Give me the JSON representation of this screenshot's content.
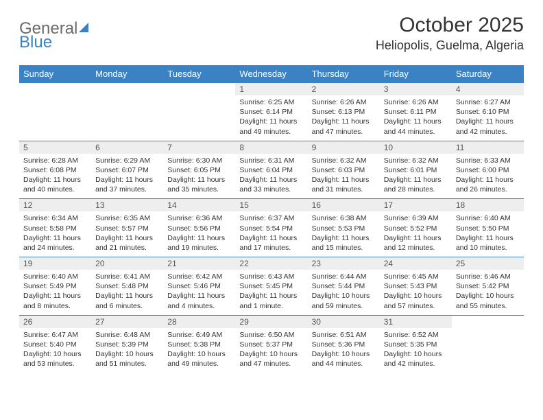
{
  "logo": {
    "text1": "General",
    "text2": "Blue"
  },
  "title": "October 2025",
  "location": "Heliopolis, Guelma, Algeria",
  "colors": {
    "header_bg": "#3b82c4",
    "header_text": "#ffffff",
    "daynum_bg": "#eeeeee",
    "border": "#3b82c4",
    "logo_gray": "#6b6b6b",
    "logo_blue": "#3b82c4"
  },
  "weekdays": [
    "Sunday",
    "Monday",
    "Tuesday",
    "Wednesday",
    "Thursday",
    "Friday",
    "Saturday"
  ],
  "weeks": [
    {
      "nums": [
        "",
        "",
        "",
        "1",
        "2",
        "3",
        "4"
      ],
      "info": [
        null,
        null,
        null,
        {
          "sunrise": "6:25 AM",
          "sunset": "6:14 PM",
          "daylight": "11 hours and 49 minutes."
        },
        {
          "sunrise": "6:26 AM",
          "sunset": "6:13 PM",
          "daylight": "11 hours and 47 minutes."
        },
        {
          "sunrise": "6:26 AM",
          "sunset": "6:11 PM",
          "daylight": "11 hours and 44 minutes."
        },
        {
          "sunrise": "6:27 AM",
          "sunset": "6:10 PM",
          "daylight": "11 hours and 42 minutes."
        }
      ]
    },
    {
      "nums": [
        "5",
        "6",
        "7",
        "8",
        "9",
        "10",
        "11"
      ],
      "info": [
        {
          "sunrise": "6:28 AM",
          "sunset": "6:08 PM",
          "daylight": "11 hours and 40 minutes."
        },
        {
          "sunrise": "6:29 AM",
          "sunset": "6:07 PM",
          "daylight": "11 hours and 37 minutes."
        },
        {
          "sunrise": "6:30 AM",
          "sunset": "6:05 PM",
          "daylight": "11 hours and 35 minutes."
        },
        {
          "sunrise": "6:31 AM",
          "sunset": "6:04 PM",
          "daylight": "11 hours and 33 minutes."
        },
        {
          "sunrise": "6:32 AM",
          "sunset": "6:03 PM",
          "daylight": "11 hours and 31 minutes."
        },
        {
          "sunrise": "6:32 AM",
          "sunset": "6:01 PM",
          "daylight": "11 hours and 28 minutes."
        },
        {
          "sunrise": "6:33 AM",
          "sunset": "6:00 PM",
          "daylight": "11 hours and 26 minutes."
        }
      ]
    },
    {
      "nums": [
        "12",
        "13",
        "14",
        "15",
        "16",
        "17",
        "18"
      ],
      "info": [
        {
          "sunrise": "6:34 AM",
          "sunset": "5:58 PM",
          "daylight": "11 hours and 24 minutes."
        },
        {
          "sunrise": "6:35 AM",
          "sunset": "5:57 PM",
          "daylight": "11 hours and 21 minutes."
        },
        {
          "sunrise": "6:36 AM",
          "sunset": "5:56 PM",
          "daylight": "11 hours and 19 minutes."
        },
        {
          "sunrise": "6:37 AM",
          "sunset": "5:54 PM",
          "daylight": "11 hours and 17 minutes."
        },
        {
          "sunrise": "6:38 AM",
          "sunset": "5:53 PM",
          "daylight": "11 hours and 15 minutes."
        },
        {
          "sunrise": "6:39 AM",
          "sunset": "5:52 PM",
          "daylight": "11 hours and 12 minutes."
        },
        {
          "sunrise": "6:40 AM",
          "sunset": "5:50 PM",
          "daylight": "11 hours and 10 minutes."
        }
      ]
    },
    {
      "nums": [
        "19",
        "20",
        "21",
        "22",
        "23",
        "24",
        "25"
      ],
      "info": [
        {
          "sunrise": "6:40 AM",
          "sunset": "5:49 PM",
          "daylight": "11 hours and 8 minutes."
        },
        {
          "sunrise": "6:41 AM",
          "sunset": "5:48 PM",
          "daylight": "11 hours and 6 minutes."
        },
        {
          "sunrise": "6:42 AM",
          "sunset": "5:46 PM",
          "daylight": "11 hours and 4 minutes."
        },
        {
          "sunrise": "6:43 AM",
          "sunset": "5:45 PM",
          "daylight": "11 hours and 1 minute."
        },
        {
          "sunrise": "6:44 AM",
          "sunset": "5:44 PM",
          "daylight": "10 hours and 59 minutes."
        },
        {
          "sunrise": "6:45 AM",
          "sunset": "5:43 PM",
          "daylight": "10 hours and 57 minutes."
        },
        {
          "sunrise": "6:46 AM",
          "sunset": "5:42 PM",
          "daylight": "10 hours and 55 minutes."
        }
      ]
    },
    {
      "nums": [
        "26",
        "27",
        "28",
        "29",
        "30",
        "31",
        ""
      ],
      "info": [
        {
          "sunrise": "6:47 AM",
          "sunset": "5:40 PM",
          "daylight": "10 hours and 53 minutes."
        },
        {
          "sunrise": "6:48 AM",
          "sunset": "5:39 PM",
          "daylight": "10 hours and 51 minutes."
        },
        {
          "sunrise": "6:49 AM",
          "sunset": "5:38 PM",
          "daylight": "10 hours and 49 minutes."
        },
        {
          "sunrise": "6:50 AM",
          "sunset": "5:37 PM",
          "daylight": "10 hours and 47 minutes."
        },
        {
          "sunrise": "6:51 AM",
          "sunset": "5:36 PM",
          "daylight": "10 hours and 44 minutes."
        },
        {
          "sunrise": "6:52 AM",
          "sunset": "5:35 PM",
          "daylight": "10 hours and 42 minutes."
        },
        null
      ]
    }
  ]
}
